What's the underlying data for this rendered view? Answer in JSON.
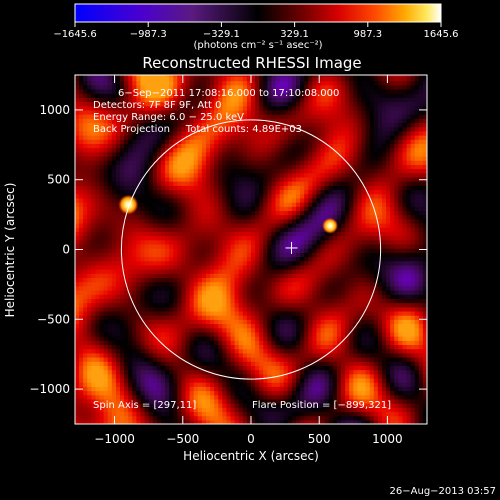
{
  "chart_data": {
    "type": "heatmap",
    "title": "Reconstructed RHESSI Image",
    "xlabel": "Heliocentric X (arcsec)",
    "ylabel": "Heliocentric Y (arcsec)",
    "xlim": [
      -1290,
      1290
    ],
    "ylim": [
      -1250,
      1250
    ],
    "x_ticks": [
      -1000,
      -500,
      0,
      500,
      1000
    ],
    "x_tick_labels": [
      "−1000",
      "−500",
      "0",
      "500",
      "1000"
    ],
    "y_ticks": [
      -1000,
      -500,
      0,
      500,
      1000
    ],
    "y_tick_labels": [
      "−1000",
      "−500",
      "0",
      "500",
      "1000"
    ],
    "colorbar": {
      "min": -1645.6,
      "max": 1645.6,
      "tick_values": [
        -1645.6,
        -987.3,
        -329.1,
        329.1,
        987.3,
        1645.6
      ],
      "tick_labels": [
        "−1645.6",
        "−987.3",
        "−329.1",
        "329.1",
        "987.3",
        "1645.6"
      ],
      "unit_label": "(photons cm⁻² s⁻¹ asec⁻²)"
    },
    "info_lines": [
      "6−Sep−2011 17:08:16.000 to 17:10:08.000",
      "Detectors: 7F 8F 9F, Att 0",
      "Energy Range: 6.0 − 25.0 keV",
      "Back Projection     Total counts: 4.89E+03"
    ],
    "footer_left": "Spin Axis = [297,11]",
    "footer_right": "Flare Position = [−899,321]",
    "solar_disk": {
      "center": [
        0,
        0
      ],
      "radius_arcsec": 950,
      "color": "#ffffff"
    },
    "sources": [
      {
        "x": -899,
        "y": 321,
        "peak": 1645.6
      },
      {
        "x": 580,
        "y": 170,
        "peak": 1050
      }
    ],
    "spin_axis_marker": {
      "x": 297,
      "y": 11,
      "symbol": "+"
    },
    "colors": {
      "background": "#000000",
      "frame": "#ffffff",
      "colormap": [
        "#0000ff",
        "#7000c8",
        "#3c0a50",
        "#000000",
        "#780000",
        "#e60000",
        "#ff7800",
        "#ffdc28",
        "#ffffff"
      ]
    }
  },
  "timestamp": "26−Aug−2013 03:57"
}
